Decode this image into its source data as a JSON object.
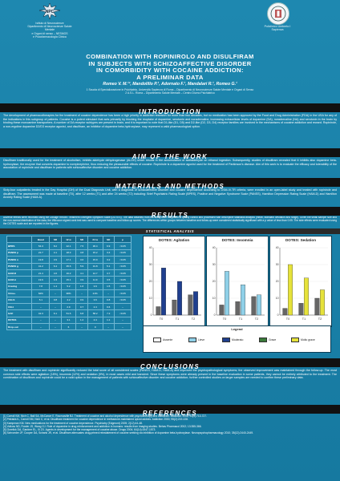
{
  "colors": {
    "background": "#1a7fa6",
    "section_bar": "#111111",
    "agitation": "#1f3f8f",
    "insomnia": "#8fd0e8",
    "sedation": "#e6e23a",
    "bar_neutral": "#666666"
  },
  "logo_left": {
    "icon": "university-emblem-icon",
    "lines": [
      "Istituto di Neuroscienze",
      "Dipartimento di Neuroscienze Salute Mentale",
      "e Organi di senso – NESMOS",
      "e Psicofarmacologia Clinica"
    ]
  },
  "logo_right": {
    "icon": "hospital-seal-icon",
    "lines": [
      "Policlinico Umberto I",
      "Sapienza"
    ]
  },
  "title_lines": [
    "COMBINATION WITH ROPINIROLO AND DISULFIRAM",
    "IN SUBJECTS WITH SCHIZOAFFECTIVE DISORDER",
    "IN COMORBIDITY WITH COCAINE ADDICTION:",
    "A PRELIMINAR DATA"
  ],
  "authors": "Romeo V. M.¹², Mandolillo P.¹, Adornato F.¹, Mandalari R.¹, Romeo G.¹",
  "affiliations": [
    "1 Scuola di Specializzazione in Psichiatria, Università Sapienza di Roma – Dipartimento di Neuroscienze Salute Mentale e Organi di Senso",
    "2 A.S.L. Roma – Dipartimento Salute Mentale – Centro Diurno Psichiatrico"
  ],
  "sections": {
    "introduction": "INTRODUCTION",
    "aim": "AIM OF THE WORK",
    "materials": "MATERIALS AND METHODS",
    "results": "RESULTS",
    "conclusions": "CONCLUSIONS",
    "references": "REFERENCES"
  },
  "introduction_text": "The development of pharmacotherapies for the treatment of cocaine dependence has been a high priority in addiction research for more than two decades, but no medication has been approved by the Food and Drug Administration (FDA) in the USA for any of the indications in this subgroup of patients. Cocaine is a potent stimulant that acts primarily by blocking the reuptake of dopamine, serotonin and noradrenaline, increasing extracellular levels of dopamine (DA), noradrenaline (NA) and serotonin in the brain by binding these monoamine transporters. A number of DA receptor subtypes are present in brain, and it is important to note that D1-like (D1, D5) and D2-like (D2, D3, D4) receptor families are involved in the mechanisms of cocaine addiction and reward. Ropinirole, a non-ergoline dopamine D2/D3 receptor agonist, and disulfiram, an inhibitor of dopamine beta-hydroxylase, may represent a valid pharmacological option.",
  "aim_text": "Disulfiram traditionally used for the treatment of alcoholism, inhibits aldehyde dehydrogenase (ALDH) which results in the accumulation of acetaldehyde on ethanol ingestion. Subsequently, studies of disulfiram revealed that it inhibits also dopamine beta-hydroxylase, the enzyme that converts dopamine to norepinephrine, thus reducing the pleasurable effects of cocaine. Ropinirole is a dopamine agonist used for the treatment of Parkinson's disease. Aim of this work is to evaluate the efficacy and tolerability of the association of ropinirole and disulfiram in patients with schizoaffective disorder and cocaine addiction.",
  "materials_text": "Sixty-four outpatients treated in the Day Hospital (DH) of the Dual Diagnosis Unit, with a diagnosis of schizoaffective disorder and cocaine dependence according to DSM-IV-TR criteria, were enrolled in an open-label study and treated with ropinirole and disulfiram. The assessment was made at baseline (T0), after 12 weeks (T1) and after 24 weeks (T2) including: Brief Psychiatric Rating Scale (BPRS), Positive and Negative Syndrome Scale (PANSS), Hamilton Depression Rating Scale (HAM-D) and Hamilton Anxiety Rating Scale (HAM-A).",
  "results_text": "Adverse effects were recorded using the Dosage Record Treatment Emergent Symptom Scale (DOTES). The data obtained from the study were subjected to quality control and processed with descriptive statistical analysis (mean, standard deviation and range). Given the small sample size and the non-normal distribution of the data, the Wilcoxon signed-rank test was used to compare baseline and follow-up scores. The differences within groups between baseline and follow-up were considered statistically significant with a p value of less than 0.05. The side effects were evaluated using the DOTES scale and are reported in the figures.",
  "stats_title": "STATISTICAL ANALYSIS",
  "stats_table": {
    "headers": [
      "",
      "Basal",
      "SD",
      "12 w",
      "SD",
      "24 w",
      "SD",
      "p"
    ],
    "rows": [
      [
        "BPRS",
        "54.3",
        "8.2",
        "42.1",
        "7.5",
        "36.4",
        "6.9",
        "<0.05"
      ],
      [
        "PANSS p",
        "22.7",
        "4.1",
        "18.3",
        "3.8",
        "15.2",
        "3.4",
        "<0.05"
      ],
      [
        "PANSS n",
        "19.8",
        "3.9",
        "17.1",
        "3.6",
        "15.9",
        "3.2",
        "<0.05"
      ],
      [
        "PANSS g",
        "41.2",
        "6.4",
        "35.6",
        "5.9",
        "31.8",
        "5.1",
        "<0.05"
      ],
      [
        "HAM-D",
        "21.4",
        "4.6",
        "16.2",
        "4.1",
        "12.7",
        "3.7",
        "<0.05"
      ],
      [
        "HAM-A",
        "19.6",
        "4.3",
        "15.1",
        "3.9",
        "11.9",
        "3.5",
        "<0.05"
      ],
      [
        "Craving",
        "7.8",
        "1.4",
        "5.2",
        "1.6",
        "3.9",
        "1.5",
        "<0.05"
      ],
      [
        "Urine+",
        "62%",
        "–",
        "38%",
        "–",
        "21%",
        "–",
        "<0.05"
      ],
      [
        "CGI-S",
        "5.1",
        "0.8",
        "4.2",
        "0.9",
        "3.6",
        "0.8",
        "<0.05"
      ],
      [
        "CGI-I",
        "–",
        "–",
        "2.9",
        "0.7",
        "2.4",
        "0.6",
        "–"
      ],
      [
        "GAF",
        "42.3",
        "6.1",
        "51.6",
        "6.8",
        "58.2",
        "7.2",
        "<0.05"
      ],
      [
        "DOTES",
        "–",
        "–",
        "3.1",
        "1.2",
        "2.4",
        "1.1",
        "–"
      ],
      [
        "Drop-out",
        "–",
        "–",
        "6",
        "–",
        "9",
        "–",
        "–"
      ]
    ]
  },
  "chart_data": [
    {
      "type": "bar",
      "title": "DOTES: Agitation",
      "categories": [
        "T0",
        "T1",
        "T2"
      ],
      "series": [
        {
          "values": [
            5,
            9,
            12
          ]
        },
        {
          "values": [
            28,
            20,
            14
          ]
        }
      ],
      "ylim": [
        0,
        40
      ],
      "ylabel": "",
      "xlabel": ""
    },
    {
      "type": "bar",
      "title": "DOTES: Insomnia",
      "categories": [
        "T0",
        "T1",
        "T2"
      ],
      "series": [
        {
          "values": [
            6,
            8,
            11
          ]
        },
        {
          "values": [
            26,
            18,
            12
          ]
        }
      ],
      "ylim": [
        0,
        40
      ],
      "ylabel": "",
      "xlabel": ""
    },
    {
      "type": "bar",
      "title": "DOTES: Sedation",
      "categories": [
        "T0",
        "T1",
        "T2"
      ],
      "series": [
        {
          "values": [
            4,
            7,
            10
          ]
        },
        {
          "values": [
            30,
            22,
            15
          ]
        }
      ],
      "ylim": [
        0,
        40
      ],
      "ylabel": "",
      "xlabel": ""
    }
  ],
  "legend": {
    "title": "Legend",
    "items": [
      "Assente",
      "Lieve",
      "Moderato",
      "Grave",
      "Molto grave"
    ]
  },
  "conclusions_text": "The treatment with disulfiram and ropinirole significantly reduced the total score of all considered scales (PANSS, HAM-D, HAM-A) and improved the psychopathological symptoms; the observed improvement was maintained through the follow-up. The most common side effects were agitation (18%), insomnia (12%) and sedation (9%), in most cases mild and transient. Since these symptoms were already present in the baseline evaluation in some patients, they cannot be entirely attributed to the treatment. The combination of disulfiram and ropinirole could be a valid option in the management of patients with schizoaffective disorder and cocaine addiction; further controlled studies on larger samples are needed to confirm these preliminary data.",
  "references": [
    "[1] Carroll KM, Nich C, Ball SA, McCance E, Rounsaville BJ. Treatment of cocaine and alcohol dependence with psychotherapy and disulfiram. Addiction 1998; 93(5):713-727.",
    "[2] Petrakis IL, Carroll KM, Nich C, et al. Disulfiram treatment for cocaine dependence in methadone-maintained opioid addicts. Addiction 2000; 95(2):219-228.",
    "[3] Kampman KM. New medications for the treatment of cocaine dependence. Psychiatry (Edgmont) 2005; 2(12):44-48.",
    "[4] Volkow ND, Fowler JS, Wang GJ. Role of dopamine in drug reinforcement and addiction in humans: results from imaging studies. Behav Pharmacol 2002; 13:355-366.",
    "[5] Gorelick DA, Gardner EL, Xi ZX. Agents in development for the management of cocaine abuse. Drugs 2004; 64(14):1547-1573.",
    "[6] Schroeder JP, Cooper DA, Schank JR, et al. Disulfiram attenuates drug-primed reinstatement of cocaine seeking via inhibition of dopamine beta-hydroxylase. Neuropsychopharmacology 2010; 35(12):2440-2449."
  ]
}
